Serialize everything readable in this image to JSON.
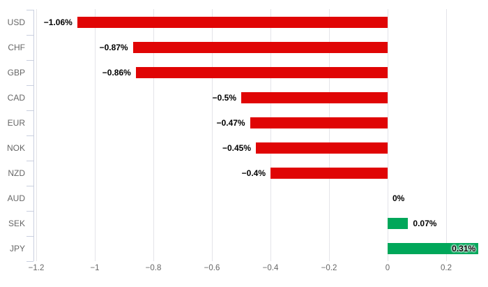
{
  "chart_data": {
    "type": "bar",
    "orientation": "horizontal",
    "title": "",
    "xlabel": "",
    "ylabel": "",
    "grid": true,
    "legend": false,
    "categories": [
      "USD",
      "CHF",
      "GBP",
      "CAD",
      "EUR",
      "NOK",
      "NZD",
      "AUD",
      "SEK",
      "JPY"
    ],
    "values": [
      -1.06,
      -0.87,
      -0.86,
      -0.5,
      -0.47,
      -0.45,
      -0.4,
      0,
      0.07,
      0.31
    ],
    "value_labels": [
      "−1.06%",
      "−0.87%",
      "−0.86%",
      "−0.5%",
      "−0.47%",
      "−0.45%",
      "−0.4%",
      "0%",
      "0.07%",
      "0.31%"
    ],
    "x_ticks": [
      -1.2,
      -1,
      -0.8,
      -0.6,
      -0.4,
      -0.2,
      0,
      0.2
    ],
    "x_tick_labels": [
      "−1.2",
      "−1",
      "−0.8",
      "−0.6",
      "−0.4",
      "−0.2",
      "0",
      "0.2"
    ],
    "xlim": [
      -1.2,
      0.2
    ],
    "colors": {
      "negative": "#e00505",
      "positive": "#00a75a",
      "gridline": "#e4e4e9",
      "axis": "#c9cfdf",
      "category_label": "#666666",
      "tick_label": "#666666",
      "value_label": "#000000"
    }
  }
}
